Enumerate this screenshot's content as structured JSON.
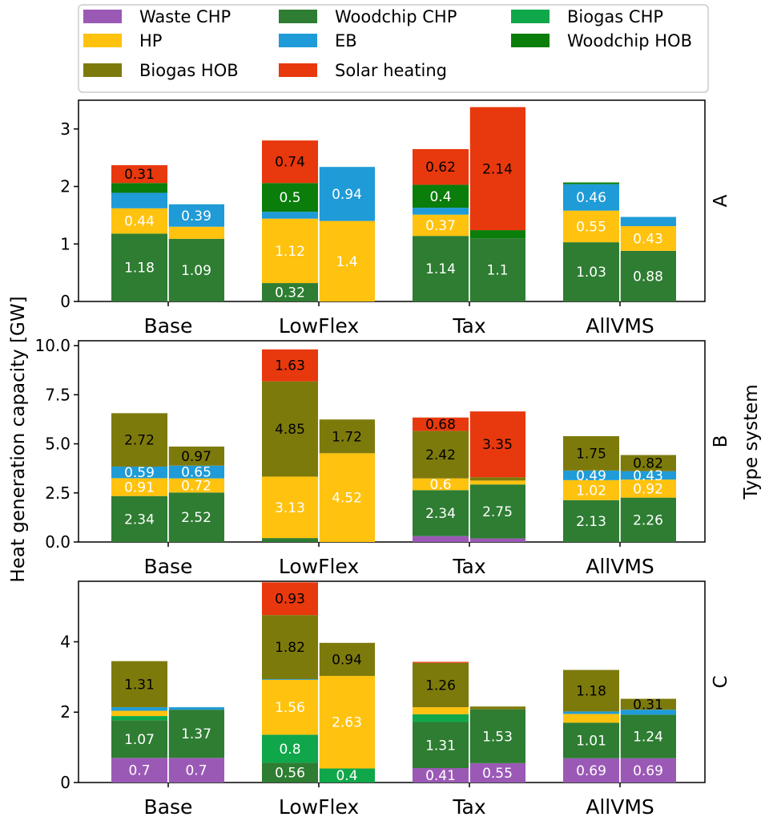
{
  "figure": {
    "ylabel": "Heat generation capacity [GW]",
    "right_label": "Type system"
  },
  "legend": {
    "placement": "top",
    "entries": [
      {
        "name": "Waste CHP",
        "color": "#9b59b6"
      },
      {
        "name": "Woodchip CHP",
        "color": "#2e7d32"
      },
      {
        "name": "Biogas CHP",
        "color": "#10a74a"
      },
      {
        "name": "HP",
        "color": "#ffc20e"
      },
      {
        "name": "EB",
        "color": "#1f9bd7"
      },
      {
        "name": "Woodchip HOB",
        "color": "#0a7d0a"
      },
      {
        "name": "Biogas HOB",
        "color": "#7d7a0c"
      },
      {
        "name": "Solar heating",
        "color": "#e8380d"
      }
    ]
  },
  "chart_data": [
    {
      "type": "bar",
      "stacked": true,
      "panel_label": "A",
      "categories": [
        "Base",
        "LowFlex",
        "Tax",
        "AllVMS"
      ],
      "ylim": [
        0,
        3.5
      ],
      "yticks": [
        0,
        1,
        2,
        3
      ],
      "bars": [
        {
          "category": "Base",
          "segments": [
            {
              "series": "Woodchip CHP",
              "value": 1.18,
              "label": "1.18"
            },
            {
              "series": "HP",
              "value": 0.44,
              "label": "0.44"
            },
            {
              "series": "EB",
              "value": 0.27
            },
            {
              "series": "Woodchip HOB",
              "value": 0.17
            },
            {
              "series": "Solar heating",
              "value": 0.31,
              "label": "0.31"
            }
          ]
        },
        {
          "category": "Base",
          "segments": [
            {
              "series": "Woodchip CHP",
              "value": 1.09,
              "label": "1.09"
            },
            {
              "series": "HP",
              "value": 0.21
            },
            {
              "series": "EB",
              "value": 0.39,
              "label": "0.39"
            }
          ]
        },
        {
          "category": "LowFlex",
          "segments": [
            {
              "series": "Woodchip CHP",
              "value": 0.32,
              "label": "0.32"
            },
            {
              "series": "HP",
              "value": 1.12,
              "label": "1.12"
            },
            {
              "series": "EB",
              "value": 0.12
            },
            {
              "series": "Woodchip HOB",
              "value": 0.5,
              "label": "0.5"
            },
            {
              "series": "Solar heating",
              "value": 0.74,
              "label": "0.74"
            }
          ]
        },
        {
          "category": "LowFlex",
          "segments": [
            {
              "series": "HP",
              "value": 1.4,
              "label": "1.4"
            },
            {
              "series": "EB",
              "value": 0.94,
              "label": "0.94"
            }
          ]
        },
        {
          "category": "Tax",
          "segments": [
            {
              "series": "Woodchip CHP",
              "value": 1.14,
              "label": "1.14"
            },
            {
              "series": "HP",
              "value": 0.37,
              "label": "0.37"
            },
            {
              "series": "EB",
              "value": 0.12
            },
            {
              "series": "Woodchip HOB",
              "value": 0.4,
              "label": "0.4"
            },
            {
              "series": "Solar heating",
              "value": 0.62,
              "label": "0.62"
            }
          ]
        },
        {
          "category": "Tax",
          "segments": [
            {
              "series": "Woodchip CHP",
              "value": 1.1,
              "label": "1.1"
            },
            {
              "series": "Woodchip HOB",
              "value": 0.14
            },
            {
              "series": "Solar heating",
              "value": 2.14,
              "label": "2.14"
            }
          ]
        },
        {
          "category": "AllVMS",
          "segments": [
            {
              "series": "Woodchip CHP",
              "value": 1.03,
              "label": "1.03"
            },
            {
              "series": "HP",
              "value": 0.55,
              "label": "0.55"
            },
            {
              "series": "EB",
              "value": 0.46,
              "label": "0.46"
            },
            {
              "series": "Woodchip HOB",
              "value": 0.03
            }
          ]
        },
        {
          "category": "AllVMS",
          "segments": [
            {
              "series": "Woodchip CHP",
              "value": 0.88,
              "label": "0.88"
            },
            {
              "series": "HP",
              "value": 0.43,
              "label": "0.43"
            },
            {
              "series": "EB",
              "value": 0.16
            }
          ]
        }
      ]
    },
    {
      "type": "bar",
      "stacked": true,
      "panel_label": "B",
      "categories": [
        "Base",
        "LowFlex",
        "Tax",
        "AllVMS"
      ],
      "ylim": [
        0,
        10.25
      ],
      "yticks": [
        0.0,
        2.5,
        5.0,
        7.5,
        10.0
      ],
      "bars": [
        {
          "category": "Base",
          "segments": [
            {
              "series": "Woodchip CHP",
              "value": 2.34,
              "label": "2.34"
            },
            {
              "series": "HP",
              "value": 0.91,
              "label": "0.91"
            },
            {
              "series": "EB",
              "value": 0.59,
              "label": "0.59"
            },
            {
              "series": "Biogas HOB",
              "value": 2.72,
              "label": "2.72"
            }
          ]
        },
        {
          "category": "Base",
          "segments": [
            {
              "series": "Woodchip CHP",
              "value": 2.52,
              "label": "2.52"
            },
            {
              "series": "HP",
              "value": 0.72,
              "label": "0.72"
            },
            {
              "series": "EB",
              "value": 0.65,
              "label": "0.65"
            },
            {
              "series": "Biogas HOB",
              "value": 0.97,
              "label": "0.97"
            }
          ]
        },
        {
          "category": "LowFlex",
          "segments": [
            {
              "series": "Woodchip CHP",
              "value": 0.2
            },
            {
              "series": "HP",
              "value": 3.13,
              "label": "3.13"
            },
            {
              "series": "Biogas HOB",
              "value": 4.85,
              "label": "4.85"
            },
            {
              "series": "Solar heating",
              "value": 1.63,
              "label": "1.63"
            }
          ]
        },
        {
          "category": "LowFlex",
          "segments": [
            {
              "series": "HP",
              "value": 4.52,
              "label": "4.52"
            },
            {
              "series": "Biogas HOB",
              "value": 1.72,
              "label": "1.72"
            }
          ]
        },
        {
          "category": "Tax",
          "segments": [
            {
              "series": "Waste CHP",
              "value": 0.3
            },
            {
              "series": "Woodchip CHP",
              "value": 2.34,
              "label": "2.34"
            },
            {
              "series": "HP",
              "value": 0.6,
              "label": "0.6"
            },
            {
              "series": "Biogas HOB",
              "value": 2.42,
              "label": "2.42"
            },
            {
              "series": "Solar heating",
              "value": 0.68,
              "label": "0.68"
            }
          ]
        },
        {
          "category": "Tax",
          "segments": [
            {
              "series": "Waste CHP",
              "value": 0.18
            },
            {
              "series": "Woodchip CHP",
              "value": 2.75,
              "label": "2.75"
            },
            {
              "series": "HP",
              "value": 0.2
            },
            {
              "series": "Biogas HOB",
              "value": 0.17
            },
            {
              "series": "Solar heating",
              "value": 3.35,
              "label": "3.35"
            }
          ]
        },
        {
          "category": "AllVMS",
          "segments": [
            {
              "series": "Woodchip CHP",
              "value": 2.13,
              "label": "2.13"
            },
            {
              "series": "HP",
              "value": 1.02,
              "label": "1.02"
            },
            {
              "series": "EB",
              "value": 0.49,
              "label": "0.49"
            },
            {
              "series": "Biogas HOB",
              "value": 1.75,
              "label": "1.75"
            }
          ]
        },
        {
          "category": "AllVMS",
          "segments": [
            {
              "series": "Woodchip CHP",
              "value": 2.26,
              "label": "2.26"
            },
            {
              "series": "HP",
              "value": 0.92,
              "label": "0.92"
            },
            {
              "series": "EB",
              "value": 0.43,
              "label": "0.43"
            },
            {
              "series": "Biogas HOB",
              "value": 0.82,
              "label": "0.82"
            }
          ]
        }
      ]
    },
    {
      "type": "bar",
      "stacked": true,
      "panel_label": "C",
      "categories": [
        "Base",
        "LowFlex",
        "Tax",
        "AllVMS"
      ],
      "ylim": [
        0,
        5.72
      ],
      "yticks": [
        0,
        2,
        4
      ],
      "bars": [
        {
          "category": "Base",
          "segments": [
            {
              "series": "Waste CHP",
              "value": 0.7,
              "label": "0.7"
            },
            {
              "series": "Woodchip CHP",
              "value": 1.07,
              "label": "1.07"
            },
            {
              "series": "Biogas CHP",
              "value": 0.12
            },
            {
              "series": "HP",
              "value": 0.15
            },
            {
              "series": "EB",
              "value": 0.1
            },
            {
              "series": "Biogas HOB",
              "value": 1.31,
              "label": "1.31"
            }
          ]
        },
        {
          "category": "Base",
          "segments": [
            {
              "series": "Waste CHP",
              "value": 0.7,
              "label": "0.7"
            },
            {
              "series": "Woodchip CHP",
              "value": 1.37,
              "label": "1.37"
            },
            {
              "series": "EB",
              "value": 0.07
            }
          ]
        },
        {
          "category": "LowFlex",
          "segments": [
            {
              "series": "Woodchip CHP",
              "value": 0.56,
              "label": "0.56"
            },
            {
              "series": "Biogas CHP",
              "value": 0.8,
              "label": "0.8"
            },
            {
              "series": "HP",
              "value": 1.56,
              "label": "1.56"
            },
            {
              "series": "EB",
              "value": 0.02
            },
            {
              "series": "Biogas HOB",
              "value": 1.82,
              "label": "1.82"
            },
            {
              "series": "Solar heating",
              "value": 0.93,
              "label": "0.93"
            }
          ]
        },
        {
          "category": "LowFlex",
          "segments": [
            {
              "series": "Biogas CHP",
              "value": 0.4,
              "label": "0.4"
            },
            {
              "series": "HP",
              "value": 2.63,
              "label": "2.63"
            },
            {
              "series": "Biogas HOB",
              "value": 0.94,
              "label": "0.94"
            }
          ]
        },
        {
          "category": "Tax",
          "segments": [
            {
              "series": "Waste CHP",
              "value": 0.41,
              "label": "0.41"
            },
            {
              "series": "Woodchip CHP",
              "value": 1.31,
              "label": "1.31"
            },
            {
              "series": "Biogas CHP",
              "value": 0.22
            },
            {
              "series": "HP",
              "value": 0.2
            },
            {
              "series": "Biogas HOB",
              "value": 1.26,
              "label": "1.26"
            },
            {
              "series": "Solar heating",
              "value": 0.03
            }
          ]
        },
        {
          "category": "Tax",
          "segments": [
            {
              "series": "Waste CHP",
              "value": 0.55,
              "label": "0.55"
            },
            {
              "series": "Woodchip CHP",
              "value": 1.53,
              "label": "1.53"
            },
            {
              "series": "Biogas HOB",
              "value": 0.08
            }
          ]
        },
        {
          "category": "AllVMS",
          "segments": [
            {
              "series": "Waste CHP",
              "value": 0.69,
              "label": "0.69"
            },
            {
              "series": "Woodchip CHP",
              "value": 1.01,
              "label": "1.01"
            },
            {
              "series": "HP",
              "value": 0.25
            },
            {
              "series": "EB",
              "value": 0.07
            },
            {
              "series": "Biogas HOB",
              "value": 1.18,
              "label": "1.18"
            }
          ]
        },
        {
          "category": "AllVMS",
          "segments": [
            {
              "series": "Waste CHP",
              "value": 0.69,
              "label": "0.69"
            },
            {
              "series": "Woodchip CHP",
              "value": 1.24,
              "label": "1.24"
            },
            {
              "series": "EB",
              "value": 0.14
            },
            {
              "series": "Biogas HOB",
              "value": 0.31,
              "label": "0.31"
            }
          ]
        }
      ]
    }
  ]
}
